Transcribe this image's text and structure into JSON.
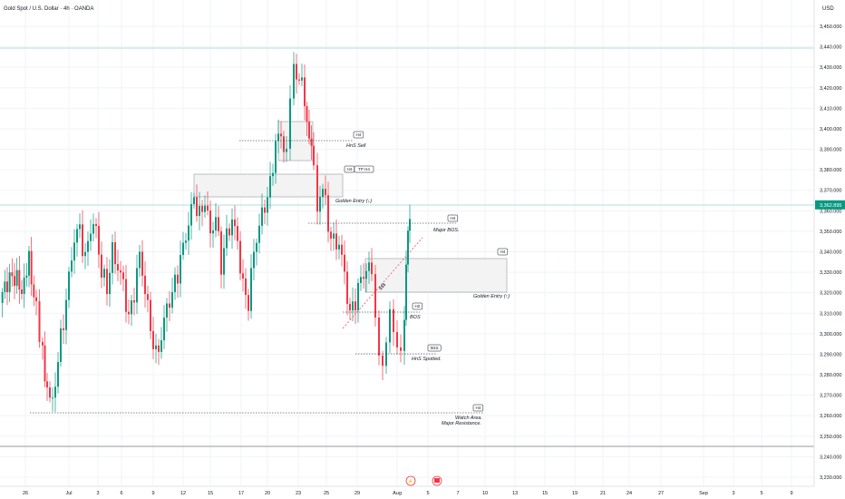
{
  "header": {
    "title": "Gold Spot / U.S. Dollar · 4h · OANDA",
    "currency": "USD"
  },
  "colors": {
    "up": "#089981",
    "down": "#f23645",
    "price_badge": "#089981",
    "grid": "#f0f3fa",
    "text": "#131722",
    "muted": "#787b86"
  },
  "price_axis": {
    "ticks": [
      "3,450.000",
      "3,440.000",
      "3,430.000",
      "3,420.000",
      "3,410.000",
      "3,400.000",
      "3,390.000",
      "3,380.000",
      "3,370.000",
      "3,360.000",
      "3,350.000",
      "3,340.000",
      "3,330.000",
      "3,320.000",
      "3,310.000",
      "3,300.000",
      "3,290.000",
      "3,280.000",
      "3,270.000",
      "3,260.000",
      "3,250.000",
      "3,240.000",
      "3,230.000"
    ],
    "last_price": "3,362.895"
  },
  "time_axis": {
    "labels": [
      "26",
      "Jul",
      "3",
      "6",
      "9",
      "12",
      "15",
      "17",
      "20",
      "23",
      "25",
      "29",
      "Aug",
      "5",
      "7",
      "10",
      "13",
      "15",
      "19",
      "21",
      "24",
      "27",
      "Sep",
      "3",
      "5",
      "9"
    ]
  },
  "annotations": {
    "hns_sell": {
      "tag": "H4",
      "label": "HnS Sell"
    },
    "golden_entry_down": {
      "tags": [
        "H4",
        "TP H4"
      ],
      "label": "Golden Entry (↓)"
    },
    "major_bos": {
      "tag": "H4",
      "label": "Major BOS."
    },
    "golden_entry_up": {
      "tag": "H4",
      "label": "Golden Entry (↑)"
    },
    "bos": {
      "tag": "H2",
      "label": "BOS"
    },
    "hns_spotted": {
      "tag": "M15",
      "label": "HnS Spotted."
    },
    "watch_area": {
      "tag": "H4",
      "label_line1": "Watch Area.",
      "label_line2": "Major Resistance."
    },
    "trend_label": "$$$"
  },
  "chart_data": {
    "type": "candlestick",
    "symbol": "Gold Spot / U.S. Dollar",
    "interval": "4h",
    "source": "OANDA",
    "ylim": [
      3230,
      3455
    ],
    "last_price": 3362.895,
    "close_path": [
      {
        "x": 0,
        "y": 3315
      },
      {
        "x": 8,
        "y": 3322
      },
      {
        "x": 16,
        "y": 3330
      },
      {
        "x": 24,
        "y": 3325
      },
      {
        "x": 32,
        "y": 3340
      },
      {
        "x": 40,
        "y": 3310
      },
      {
        "x": 47,
        "y": 3290
      },
      {
        "x": 52,
        "y": 3272
      },
      {
        "x": 58,
        "y": 3268
      },
      {
        "x": 64,
        "y": 3290
      },
      {
        "x": 70,
        "y": 3305
      },
      {
        "x": 76,
        "y": 3325
      },
      {
        "x": 82,
        "y": 3345
      },
      {
        "x": 88,
        "y": 3350
      },
      {
        "x": 94,
        "y": 3338
      },
      {
        "x": 100,
        "y": 3355
      },
      {
        "x": 106,
        "y": 3352
      },
      {
        "x": 112,
        "y": 3330
      },
      {
        "x": 118,
        "y": 3320
      },
      {
        "x": 124,
        "y": 3338
      },
      {
        "x": 130,
        "y": 3332
      },
      {
        "x": 136,
        "y": 3325
      },
      {
        "x": 142,
        "y": 3310
      },
      {
        "x": 148,
        "y": 3322
      },
      {
        "x": 154,
        "y": 3338
      },
      {
        "x": 160,
        "y": 3320
      },
      {
        "x": 166,
        "y": 3300
      },
      {
        "x": 172,
        "y": 3288
      },
      {
        "x": 178,
        "y": 3300
      },
      {
        "x": 184,
        "y": 3315
      },
      {
        "x": 190,
        "y": 3322
      },
      {
        "x": 196,
        "y": 3330
      },
      {
        "x": 202,
        "y": 3340
      },
      {
        "x": 208,
        "y": 3352
      },
      {
        "x": 214,
        "y": 3365
      },
      {
        "x": 220,
        "y": 3358
      },
      {
        "x": 226,
        "y": 3368
      },
      {
        "x": 232,
        "y": 3350
      },
      {
        "x": 238,
        "y": 3358
      },
      {
        "x": 244,
        "y": 3332
      },
      {
        "x": 250,
        "y": 3345
      },
      {
        "x": 256,
        "y": 3355
      },
      {
        "x": 262,
        "y": 3345
      },
      {
        "x": 268,
        "y": 3325
      },
      {
        "x": 274,
        "y": 3318
      },
      {
        "x": 280,
        "y": 3340
      },
      {
        "x": 286,
        "y": 3352
      },
      {
        "x": 292,
        "y": 3360
      },
      {
        "x": 298,
        "y": 3370
      },
      {
        "x": 304,
        "y": 3395
      },
      {
        "x": 310,
        "y": 3398
      },
      {
        "x": 316,
        "y": 3390
      },
      {
        "x": 320,
        "y": 3415
      },
      {
        "x": 324,
        "y": 3432
      },
      {
        "x": 330,
        "y": 3428
      },
      {
        "x": 336,
        "y": 3415
      },
      {
        "x": 341,
        "y": 3392
      },
      {
        "x": 346,
        "y": 3380
      },
      {
        "x": 350,
        "y": 3365
      },
      {
        "x": 356,
        "y": 3372
      },
      {
        "x": 362,
        "y": 3350
      },
      {
        "x": 368,
        "y": 3342
      },
      {
        "x": 374,
        "y": 3345
      },
      {
        "x": 380,
        "y": 3330
      },
      {
        "x": 386,
        "y": 3312
      },
      {
        "x": 392,
        "y": 3318
      },
      {
        "x": 398,
        "y": 3325
      },
      {
        "x": 404,
        "y": 3330
      },
      {
        "x": 410,
        "y": 3328
      },
      {
        "x": 414,
        "y": 3310
      },
      {
        "x": 418,
        "y": 3290
      },
      {
        "x": 422,
        "y": 3280
      },
      {
        "x": 426,
        "y": 3295
      },
      {
        "x": 430,
        "y": 3305
      },
      {
        "x": 434,
        "y": 3300
      },
      {
        "x": 438,
        "y": 3290
      },
      {
        "x": 442,
        "y": 3292
      },
      {
        "x": 446,
        "y": 3310
      },
      {
        "x": 448,
        "y": 3335
      },
      {
        "x": 450,
        "y": 3345
      },
      {
        "x": 452,
        "y": 3362.9
      }
    ]
  }
}
